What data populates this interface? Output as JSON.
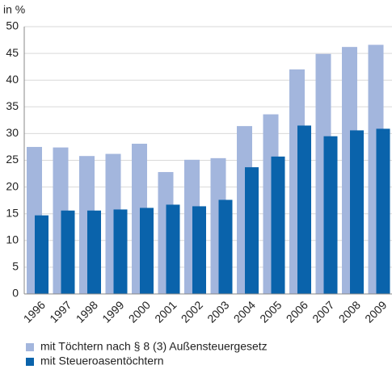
{
  "chart_data": {
    "type": "bar",
    "y_label": "in %",
    "categories": [
      "1996",
      "1997",
      "1998",
      "1999",
      "2000",
      "2001",
      "2002",
      "2003",
      "2004",
      "2005",
      "2006",
      "2007",
      "2008",
      "2009"
    ],
    "series": [
      {
        "name": "mit Töchtern nach § 8 (3) Außensteuergesetz",
        "color": "#a3b6dd",
        "values": [
          27.5,
          27.4,
          25.8,
          26.2,
          28.1,
          22.8,
          25.1,
          25.4,
          31.4,
          33.6,
          42.0,
          44.9,
          46.2,
          46.6
        ]
      },
      {
        "name": "mit Steueroasentöchtern",
        "color": "#0a63ab",
        "values": [
          14.7,
          15.6,
          15.6,
          15.8,
          16.1,
          16.7,
          16.4,
          17.6,
          23.7,
          25.7,
          31.5,
          29.5,
          30.6,
          30.9
        ]
      }
    ],
    "ylim": [
      0,
      50
    ],
    "yticks": [
      0,
      5,
      10,
      15,
      20,
      25,
      30,
      35,
      40,
      45,
      50
    ],
    "grid": true
  }
}
